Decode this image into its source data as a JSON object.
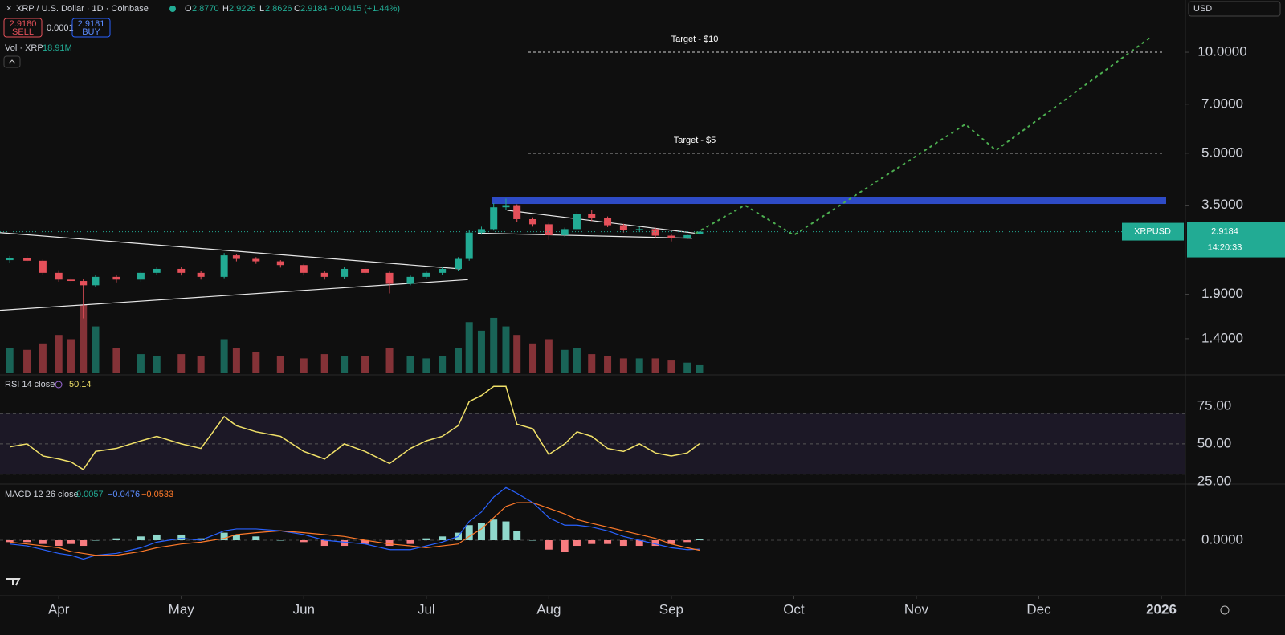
{
  "header": {
    "title": "XRP / U.S. Dollar · 1D · Coinbase",
    "o_label": "O",
    "o": "2.8770",
    "h_label": "H",
    "h": "2.9226",
    "l_label": "L",
    "l": "2.8626",
    "c_label": "C",
    "c": "2.9184",
    "change": "+0.0415 (+1.44%)",
    "sell_price": "2.9180",
    "sell": "SELL",
    "spread": "0.0001",
    "buy_price": "2.9181",
    "buy": "BUY",
    "currency": "USD"
  },
  "chart_data": {
    "type": "candlestick",
    "log_scale": true,
    "grid": false,
    "xlim": [
      -0.48,
      9.19
    ],
    "xticks": [
      {
        "value": 0,
        "label": "Apr"
      },
      {
        "value": 1,
        "label": "May"
      },
      {
        "value": 2,
        "label": "Jun"
      },
      {
        "value": 3,
        "label": "Jul"
      },
      {
        "value": 4,
        "label": "Aug"
      },
      {
        "value": 5,
        "label": "Sep"
      },
      {
        "value": 6,
        "label": "Oct"
      },
      {
        "value": 7,
        "label": "Nov"
      },
      {
        "value": 8,
        "label": "Dec"
      },
      {
        "value": 9,
        "label": "2026"
      }
    ],
    "ylim": [
      1.104,
      14.31
    ],
    "yticks": [
      {
        "value": 10,
        "label": "10.0000"
      },
      {
        "value": 7,
        "label": "7.0000"
      },
      {
        "value": 5,
        "label": "5.0000"
      },
      {
        "value": 3.5,
        "label": "3.5000"
      },
      {
        "value": 1.9,
        "label": "1.9000"
      },
      {
        "value": 1.4,
        "label": "1.4000"
      }
    ],
    "up_color": "#22ab94",
    "down_color": "#e5505a",
    "x": [
      -0.4,
      -0.26,
      -0.13,
      0,
      0.1,
      0.2,
      0.3,
      0.47,
      0.67,
      0.8,
      1.0,
      1.16,
      1.35,
      1.45,
      1.61,
      1.81,
      2.0,
      2.17,
      2.33,
      2.5,
      2.7,
      2.87,
      3.0,
      3.13,
      3.26,
      3.35,
      3.45,
      3.55,
      3.65,
      3.74,
      3.87,
      4.0,
      4.13,
      4.23,
      4.35,
      4.48,
      4.61,
      4.74,
      4.87,
      5.0,
      5.13,
      5.23
    ],
    "open": [
      2.4,
      2.44,
      2.39,
      2.2,
      2.1,
      2.08,
      2.02,
      2.14,
      2.1,
      2.2,
      2.26,
      2.2,
      2.14,
      2.48,
      2.42,
      2.38,
      2.32,
      2.2,
      2.14,
      2.26,
      2.2,
      2.04,
      2.14,
      2.2,
      2.26,
      2.42,
      2.9,
      2.97,
      3.45,
      3.5,
      3.18,
      3.07,
      2.85,
      2.97,
      3.3,
      3.2,
      3.05,
      2.95,
      2.97,
      2.84,
      2.8,
      2.877
    ],
    "high": [
      2.47,
      2.48,
      2.41,
      2.24,
      2.13,
      2.11,
      2.17,
      2.17,
      2.23,
      2.29,
      2.29,
      2.23,
      2.52,
      2.5,
      2.45,
      2.4,
      2.34,
      2.23,
      2.29,
      2.29,
      2.22,
      2.16,
      2.22,
      2.29,
      2.45,
      2.95,
      3.02,
      3.55,
      3.66,
      3.52,
      3.22,
      3.1,
      3.0,
      3.35,
      3.38,
      3.24,
      3.08,
      3.02,
      3.0,
      2.88,
      2.88,
      2.9226
    ],
    "low": [
      2.36,
      2.37,
      2.17,
      2.07,
      2.05,
      1.61,
      2.0,
      2.06,
      2.07,
      2.17,
      2.16,
      2.1,
      2.12,
      2.38,
      2.34,
      2.28,
      2.16,
      2.1,
      2.11,
      2.16,
      1.91,
      2.02,
      2.11,
      2.17,
      2.23,
      2.39,
      2.86,
      2.94,
      3.38,
      3.12,
      3.02,
      2.76,
      2.82,
      2.93,
      3.14,
      3.01,
      2.9,
      2.91,
      2.8,
      2.73,
      2.77,
      2.8626
    ],
    "close": [
      2.44,
      2.39,
      2.2,
      2.1,
      2.08,
      2.02,
      2.14,
      2.1,
      2.2,
      2.26,
      2.2,
      2.14,
      2.48,
      2.42,
      2.38,
      2.32,
      2.2,
      2.14,
      2.26,
      2.2,
      2.04,
      2.14,
      2.2,
      2.26,
      2.42,
      2.9,
      2.97,
      3.45,
      3.5,
      3.18,
      3.07,
      2.85,
      2.97,
      3.3,
      3.2,
      3.05,
      2.95,
      2.97,
      2.84,
      2.8,
      2.85,
      2.9184
    ],
    "volume_label": "Vol · XRP",
    "volume_last": "18.91M",
    "volume": [
      60,
      55,
      70,
      90,
      80,
      160,
      110,
      60,
      45,
      40,
      45,
      40,
      80,
      60,
      50,
      40,
      35,
      45,
      40,
      40,
      60,
      40,
      35,
      40,
      60,
      120,
      100,
      130,
      110,
      90,
      70,
      80,
      55,
      60,
      45,
      40,
      35,
      35,
      35,
      30,
      25,
      18.91
    ],
    "price_label": {
      "symbol": "XRPUSD",
      "price": "2.9184",
      "countdown": "14:20:33"
    },
    "zone": {
      "from": 3.53,
      "to": 3.69,
      "color": "#2e4bc6"
    },
    "targets": [
      {
        "label": "Target - $10",
        "value": 10
      },
      {
        "label": "Target - $5",
        "value": 5
      }
    ],
    "trendlines": [
      {
        "x": [
          -0.48,
          3.28
        ],
        "values": [
          2.9,
          2.26
        ]
      },
      {
        "x": [
          -0.48,
          3.34
        ],
        "values": [
          1.7,
          2.1
        ]
      },
      {
        "x": [
          3.66,
          5.19
        ],
        "values": [
          3.38,
          2.89
        ]
      },
      {
        "x": [
          3.42,
          5.17
        ],
        "values": [
          2.89,
          2.79
        ]
      }
    ],
    "projection": {
      "color": "#4caf50",
      "x": [
        5.2,
        5.6,
        6.0,
        7.4,
        7.65,
        8.9
      ],
      "values": [
        2.89,
        3.5,
        2.85,
        6.1,
        5.1,
        11.0
      ]
    },
    "rsi": {
      "label": "RSI 14 close",
      "last": "50.14",
      "color": "#f0e068",
      "ylim": [
        25,
        94
      ],
      "yticks": [
        {
          "value": 75,
          "label": "75.00"
        },
        {
          "value": 50,
          "label": "50.00"
        },
        {
          "value": 25,
          "label": "25.00"
        }
      ],
      "levels": [
        30,
        50,
        70
      ],
      "values": [
        48,
        50,
        42,
        40,
        38,
        33,
        45,
        47,
        52,
        55,
        50,
        47,
        68,
        62,
        58,
        55,
        45,
        40,
        50,
        45,
        37,
        47,
        52,
        55,
        62,
        78,
        82,
        88,
        88,
        63,
        60,
        43,
        50,
        58,
        55,
        47,
        45,
        50,
        44,
        42,
        44,
        50.14
      ]
    },
    "macd": {
      "label": "MACD 12 26 close",
      "hist_last": "0.0057",
      "macd_last": "−0.0476",
      "signal_last": "−0.0533",
      "ylim": [
        -0.29,
        0.29
      ],
      "yticks": [
        {
          "value": 0,
          "label": "0.0000"
        }
      ],
      "macd_color": "#2962ff",
      "signal_color": "#ff7a2a",
      "macd": [
        -0.02,
        -0.03,
        -0.05,
        -0.07,
        -0.08,
        -0.1,
        -0.08,
        -0.07,
        -0.04,
        -0.01,
        0.01,
        0.0,
        0.05,
        0.06,
        0.06,
        0.05,
        0.03,
        0.0,
        -0.01,
        -0.02,
        -0.05,
        -0.05,
        -0.03,
        -0.01,
        0.02,
        0.1,
        0.15,
        0.23,
        0.28,
        0.25,
        0.2,
        0.12,
        0.08,
        0.08,
        0.07,
        0.05,
        0.02,
        0.0,
        -0.02,
        -0.04,
        -0.05,
        -0.0476
      ],
      "signal": [
        -0.01,
        -0.02,
        -0.03,
        -0.04,
        -0.06,
        -0.07,
        -0.08,
        -0.08,
        -0.06,
        -0.04,
        -0.02,
        -0.01,
        0.01,
        0.03,
        0.04,
        0.05,
        0.04,
        0.03,
        0.02,
        0.0,
        -0.02,
        -0.03,
        -0.04,
        -0.03,
        -0.02,
        0.02,
        0.06,
        0.12,
        0.18,
        0.2,
        0.2,
        0.17,
        0.14,
        0.11,
        0.09,
        0.07,
        0.05,
        0.03,
        0.01,
        -0.02,
        -0.04,
        -0.0533
      ],
      "hist": [
        -0.01,
        -0.01,
        -0.02,
        -0.03,
        -0.02,
        -0.03,
        0,
        0.01,
        0.02,
        0.03,
        0.03,
        0.01,
        0.04,
        0.03,
        0.02,
        0,
        -0.01,
        -0.03,
        -0.03,
        -0.02,
        -0.03,
        -0.02,
        0.01,
        0.02,
        0.04,
        0.08,
        0.09,
        0.11,
        0.1,
        0.05,
        0,
        -0.05,
        -0.06,
        -0.03,
        -0.02,
        -0.02,
        -0.03,
        -0.03,
        -0.03,
        -0.02,
        -0.01,
        0.0057
      ]
    }
  }
}
